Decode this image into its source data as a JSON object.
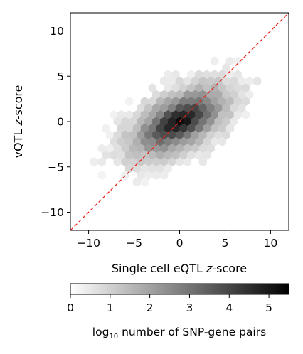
{
  "chart_data": {
    "type": "heatmap",
    "subtype": "hexbin",
    "xlabel": {
      "prefix": "Single cell eQTL ",
      "italic": "z",
      "suffix": "-score"
    },
    "ylabel": {
      "prefix": "vQTL ",
      "italic": "z",
      "suffix": "-score"
    },
    "xlim": [
      -12,
      12
    ],
    "ylim": [
      -12,
      12
    ],
    "xticks": [
      -10,
      -5,
      0,
      5,
      10
    ],
    "yticks": [
      -10,
      -5,
      0,
      5,
      10
    ],
    "xtick_labels": [
      "−10",
      "−5",
      "0",
      "5",
      "10"
    ],
    "ytick_labels": [
      "−10",
      "−5",
      "0",
      "5",
      "10"
    ],
    "reference_line": {
      "type": "identity",
      "x": [
        -12,
        12
      ],
      "y": [
        -12,
        12
      ],
      "color": "#e8221b",
      "style": "dashed"
    },
    "density": {
      "description_units": "log10 count per hexagon",
      "peak": [
        0,
        0
      ],
      "peak_value": 5.5,
      "correlation": 0.55,
      "spread_x": 3.6,
      "spread_y": 2.6
    },
    "colorbar": {
      "min": 0,
      "max": 5.5,
      "ticks": [
        0,
        1,
        2,
        3,
        4,
        5
      ],
      "tick_labels": [
        "0",
        "1",
        "2",
        "3",
        "4",
        "5"
      ],
      "label": {
        "prefix": "log",
        "sub": "10",
        "suffix": " number of SNP-gene pairs"
      },
      "colormap": "gray_r",
      "color_low": "#ffffff",
      "color_high": "#000000"
    }
  }
}
